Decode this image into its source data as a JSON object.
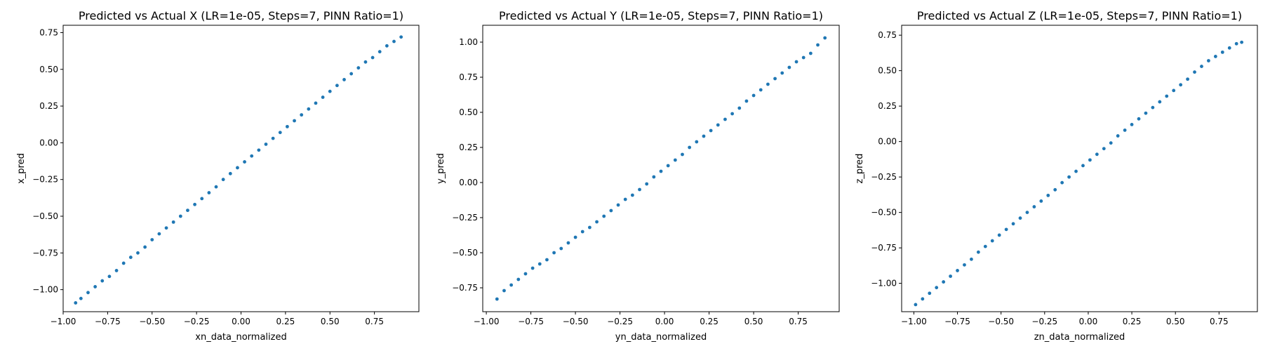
{
  "colors": {
    "points": "#1f77b4",
    "axes": "#000000",
    "background": "#ffffff"
  },
  "chart_data": [
    {
      "type": "scatter",
      "title": "Predicted vs Actual X (LR=1e-05, Steps=7, PINN Ratio=1)",
      "xlabel": "xn_data_normalized",
      "ylabel": "x_pred",
      "xlim": [
        -1.0,
        1.0
      ],
      "ylim": [
        -1.15,
        0.8
      ],
      "xticks": [
        -1.0,
        -0.75,
        -0.5,
        -0.25,
        0.0,
        0.25,
        0.5,
        0.75
      ],
      "xtick_labels": [
        "−1.00",
        "−0.75",
        "−0.50",
        "−0.25",
        "0.00",
        "0.25",
        "0.50",
        "0.75"
      ],
      "yticks": [
        -1.0,
        -0.75,
        -0.5,
        -0.25,
        0.0,
        0.25,
        0.5,
        0.75
      ],
      "ytick_labels": [
        "−1.00",
        "−0.75",
        "−0.50",
        "−0.25",
        "0.00",
        "0.25",
        "0.50",
        "0.75"
      ],
      "grid": false,
      "legend": "none",
      "points": [
        [
          -0.93,
          -1.09
        ],
        [
          -0.9,
          -1.06
        ],
        [
          -0.86,
          -1.02
        ],
        [
          -0.82,
          -0.98
        ],
        [
          -0.78,
          -0.94
        ],
        [
          -0.74,
          -0.91
        ],
        [
          -0.7,
          -0.87
        ],
        [
          -0.66,
          -0.82
        ],
        [
          -0.62,
          -0.78
        ],
        [
          -0.58,
          -0.75
        ],
        [
          -0.54,
          -0.71
        ],
        [
          -0.5,
          -0.66
        ],
        [
          -0.46,
          -0.62
        ],
        [
          -0.42,
          -0.58
        ],
        [
          -0.38,
          -0.54
        ],
        [
          -0.34,
          -0.5
        ],
        [
          -0.3,
          -0.46
        ],
        [
          -0.26,
          -0.42
        ],
        [
          -0.22,
          -0.38
        ],
        [
          -0.18,
          -0.34
        ],
        [
          -0.14,
          -0.3
        ],
        [
          -0.1,
          -0.25
        ],
        [
          -0.06,
          -0.21
        ],
        [
          -0.02,
          -0.17
        ],
        [
          0.02,
          -0.13
        ],
        [
          0.06,
          -0.09
        ],
        [
          0.1,
          -0.05
        ],
        [
          0.14,
          -0.01
        ],
        [
          0.18,
          0.03
        ],
        [
          0.22,
          0.07
        ],
        [
          0.26,
          0.11
        ],
        [
          0.3,
          0.15
        ],
        [
          0.34,
          0.19
        ],
        [
          0.38,
          0.23
        ],
        [
          0.42,
          0.27
        ],
        [
          0.46,
          0.31
        ],
        [
          0.5,
          0.35
        ],
        [
          0.54,
          0.39
        ],
        [
          0.58,
          0.43
        ],
        [
          0.62,
          0.47
        ],
        [
          0.66,
          0.51
        ],
        [
          0.7,
          0.55
        ],
        [
          0.74,
          0.58
        ],
        [
          0.78,
          0.62
        ],
        [
          0.82,
          0.66
        ],
        [
          0.86,
          0.69
        ],
        [
          0.9,
          0.72
        ]
      ]
    },
    {
      "type": "scatter",
      "title": "Predicted vs Actual Y (LR=1e-05, Steps=7, PINN Ratio=1)",
      "xlabel": "yn_data_normalized",
      "ylabel": "y_pred",
      "xlim": [
        -1.02,
        0.98
      ],
      "ylim": [
        -0.92,
        1.12
      ],
      "xticks": [
        -1.0,
        -0.75,
        -0.5,
        -0.25,
        0.0,
        0.25,
        0.5,
        0.75
      ],
      "xtick_labels": [
        "−1.00",
        "−0.75",
        "−0.50",
        "−0.25",
        "0.00",
        "0.25",
        "0.50",
        "0.75"
      ],
      "yticks": [
        -0.75,
        -0.5,
        -0.25,
        0.0,
        0.25,
        0.5,
        0.75,
        1.0
      ],
      "ytick_labels": [
        "−0.75",
        "−0.50",
        "−0.25",
        "0.00",
        "0.25",
        "0.50",
        "0.75",
        "1.00"
      ],
      "grid": false,
      "legend": "none",
      "points": [
        [
          -0.94,
          -0.83
        ],
        [
          -0.9,
          -0.77
        ],
        [
          -0.86,
          -0.73
        ],
        [
          -0.82,
          -0.69
        ],
        [
          -0.78,
          -0.65
        ],
        [
          -0.74,
          -0.61
        ],
        [
          -0.7,
          -0.58
        ],
        [
          -0.66,
          -0.55
        ],
        [
          -0.62,
          -0.5
        ],
        [
          -0.58,
          -0.47
        ],
        [
          -0.54,
          -0.43
        ],
        [
          -0.5,
          -0.39
        ],
        [
          -0.46,
          -0.35
        ],
        [
          -0.42,
          -0.32
        ],
        [
          -0.38,
          -0.28
        ],
        [
          -0.34,
          -0.24
        ],
        [
          -0.3,
          -0.2
        ],
        [
          -0.26,
          -0.16
        ],
        [
          -0.22,
          -0.12
        ],
        [
          -0.18,
          -0.09
        ],
        [
          -0.14,
          -0.05
        ],
        [
          -0.1,
          -0.01
        ],
        [
          -0.06,
          0.04
        ],
        [
          -0.02,
          0.08
        ],
        [
          0.02,
          0.12
        ],
        [
          0.06,
          0.16
        ],
        [
          0.1,
          0.2
        ],
        [
          0.14,
          0.25
        ],
        [
          0.18,
          0.29
        ],
        [
          0.22,
          0.33
        ],
        [
          0.26,
          0.37
        ],
        [
          0.3,
          0.41
        ],
        [
          0.34,
          0.45
        ],
        [
          0.38,
          0.49
        ],
        [
          0.42,
          0.53
        ],
        [
          0.46,
          0.58
        ],
        [
          0.5,
          0.62
        ],
        [
          0.54,
          0.66
        ],
        [
          0.58,
          0.7
        ],
        [
          0.62,
          0.74
        ],
        [
          0.66,
          0.78
        ],
        [
          0.7,
          0.82
        ],
        [
          0.74,
          0.86
        ],
        [
          0.78,
          0.89
        ],
        [
          0.82,
          0.92
        ],
        [
          0.86,
          0.98
        ],
        [
          0.9,
          1.03
        ]
      ]
    },
    {
      "type": "scatter",
      "title": "Predicted vs Actual Z (LR=1e-05, Steps=7, PINN Ratio=1)",
      "xlabel": "zn_data_normalized",
      "ylabel": "z_pred",
      "xlim": [
        -1.07,
        0.97
      ],
      "ylim": [
        -1.2,
        0.82
      ],
      "xticks": [
        -1.0,
        -0.75,
        -0.5,
        -0.25,
        0.0,
        0.25,
        0.5,
        0.75
      ],
      "xtick_labels": [
        "−1.00",
        "−0.75",
        "−0.50",
        "−0.25",
        "0.00",
        "0.25",
        "0.50",
        "0.75"
      ],
      "yticks": [
        -1.0,
        -0.75,
        -0.5,
        -0.25,
        0.0,
        0.25,
        0.5,
        0.75
      ],
      "ytick_labels": [
        "−1.00",
        "−0.75",
        "−0.50",
        "−0.25",
        "0.00",
        "0.25",
        "0.50",
        "0.75"
      ],
      "grid": false,
      "legend": "none",
      "points": [
        [
          -0.99,
          -1.15
        ],
        [
          -0.95,
          -1.11
        ],
        [
          -0.91,
          -1.07
        ],
        [
          -0.87,
          -1.03
        ],
        [
          -0.83,
          -0.99
        ],
        [
          -0.79,
          -0.95
        ],
        [
          -0.75,
          -0.91
        ],
        [
          -0.71,
          -0.87
        ],
        [
          -0.67,
          -0.83
        ],
        [
          -0.63,
          -0.78
        ],
        [
          -0.59,
          -0.74
        ],
        [
          -0.55,
          -0.7
        ],
        [
          -0.51,
          -0.66
        ],
        [
          -0.47,
          -0.62
        ],
        [
          -0.43,
          -0.58
        ],
        [
          -0.39,
          -0.54
        ],
        [
          -0.35,
          -0.5
        ],
        [
          -0.31,
          -0.46
        ],
        [
          -0.27,
          -0.42
        ],
        [
          -0.23,
          -0.38
        ],
        [
          -0.19,
          -0.34
        ],
        [
          -0.15,
          -0.29
        ],
        [
          -0.11,
          -0.25
        ],
        [
          -0.07,
          -0.21
        ],
        [
          -0.03,
          -0.17
        ],
        [
          0.01,
          -0.13
        ],
        [
          0.05,
          -0.09
        ],
        [
          0.09,
          -0.05
        ],
        [
          0.13,
          -0.01
        ],
        [
          0.17,
          0.04
        ],
        [
          0.21,
          0.08
        ],
        [
          0.25,
          0.12
        ],
        [
          0.29,
          0.16
        ],
        [
          0.33,
          0.2
        ],
        [
          0.37,
          0.24
        ],
        [
          0.41,
          0.28
        ],
        [
          0.45,
          0.32
        ],
        [
          0.49,
          0.36
        ],
        [
          0.53,
          0.4
        ],
        [
          0.57,
          0.44
        ],
        [
          0.61,
          0.49
        ],
        [
          0.65,
          0.53
        ],
        [
          0.69,
          0.57
        ],
        [
          0.73,
          0.6
        ],
        [
          0.77,
          0.63
        ],
        [
          0.81,
          0.66
        ],
        [
          0.85,
          0.69
        ],
        [
          0.88,
          0.7
        ]
      ]
    }
  ]
}
